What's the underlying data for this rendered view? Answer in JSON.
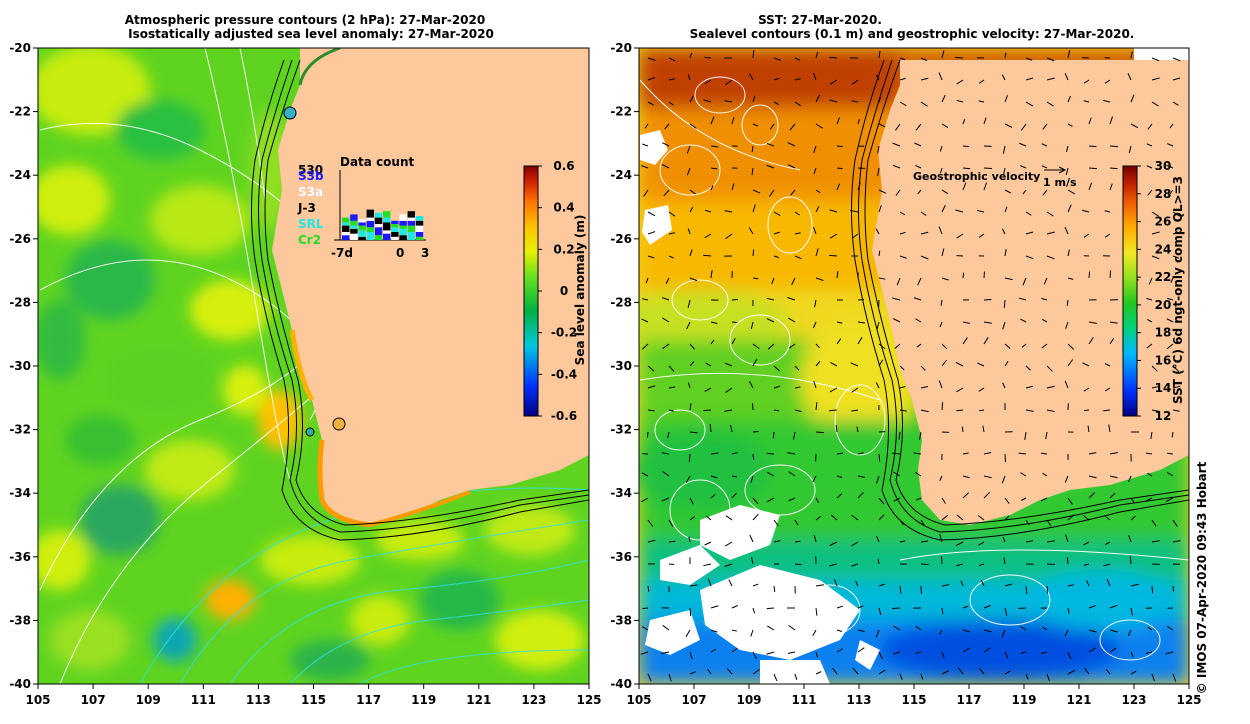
{
  "left_panel": {
    "title_line1": "Atmospheric pressure contours (2 hPa): 27-Mar-2020",
    "title_line2": "Isostatically adjusted sea level anomaly: 27-Mar-2020",
    "y_ticks": [
      "-20",
      "-22",
      "-24",
      "-26",
      "-28",
      "-30",
      "-32",
      "-34",
      "-36",
      "-38",
      "-40"
    ],
    "x_ticks": [
      "105",
      "107",
      "109",
      "111",
      "113",
      "115",
      "117",
      "119",
      "121",
      "123",
      "125"
    ],
    "colorbar": {
      "label": "Sea level anomaly (m)",
      "ticks": [
        "0.6",
        "0.4",
        "0.2",
        "0",
        "-0.2",
        "-0.4",
        "-0.6"
      ]
    },
    "data_count": {
      "title": "Data count",
      "max_label": "530",
      "satellites": [
        {
          "name": "S3b",
          "color": "#1a1aff"
        },
        {
          "name": "S3a",
          "color": "#ffffff"
        },
        {
          "name": "J-3",
          "color": "#000000"
        },
        {
          "name": "SRL",
          "color": "#22e5e5"
        },
        {
          "name": "Cr2",
          "color": "#22dd22"
        }
      ],
      "x_labels": [
        "-7d",
        "0",
        "3"
      ]
    }
  },
  "right_panel": {
    "title_line1": "SST: 27-Mar-2020.",
    "title_line2": "Sealevel contours (0.1 m) and geostrophic velocity: 27-Mar-2020.",
    "y_ticks": [
      "-20",
      "-22",
      "-24",
      "-26",
      "-28",
      "-30",
      "-32",
      "-34",
      "-36",
      "-38",
      "-40"
    ],
    "x_ticks": [
      "105",
      "107",
      "109",
      "111",
      "113",
      "115",
      "117",
      "119",
      "121",
      "123",
      "125"
    ],
    "colorbar": {
      "label": "SST (°C) 6d ngt-only comp QL>=3",
      "ticks": [
        "30",
        "28",
        "26",
        "24",
        "22",
        "20",
        "18",
        "16",
        "14",
        "12"
      ]
    },
    "velocity_legend": {
      "label": "Geostrophic velocity",
      "scale": "1 m/s"
    }
  },
  "credit": "© IMOS 07-Apr-2020 09:43 Hobart",
  "colors": {
    "land": "#fcc89c",
    "sla_ramp": [
      "#000080",
      "#0040ff",
      "#00c8e0",
      "#00b030",
      "#40e020",
      "#c8f000",
      "#ffd000",
      "#ff8000",
      "#d02000",
      "#800000"
    ],
    "sst_ramp": [
      "#000080",
      "#0040ff",
      "#00c0ff",
      "#00d070",
      "#20d020",
      "#a0e020",
      "#f0e020",
      "#ffa000",
      "#e05000",
      "#b01000",
      "#700000"
    ]
  }
}
